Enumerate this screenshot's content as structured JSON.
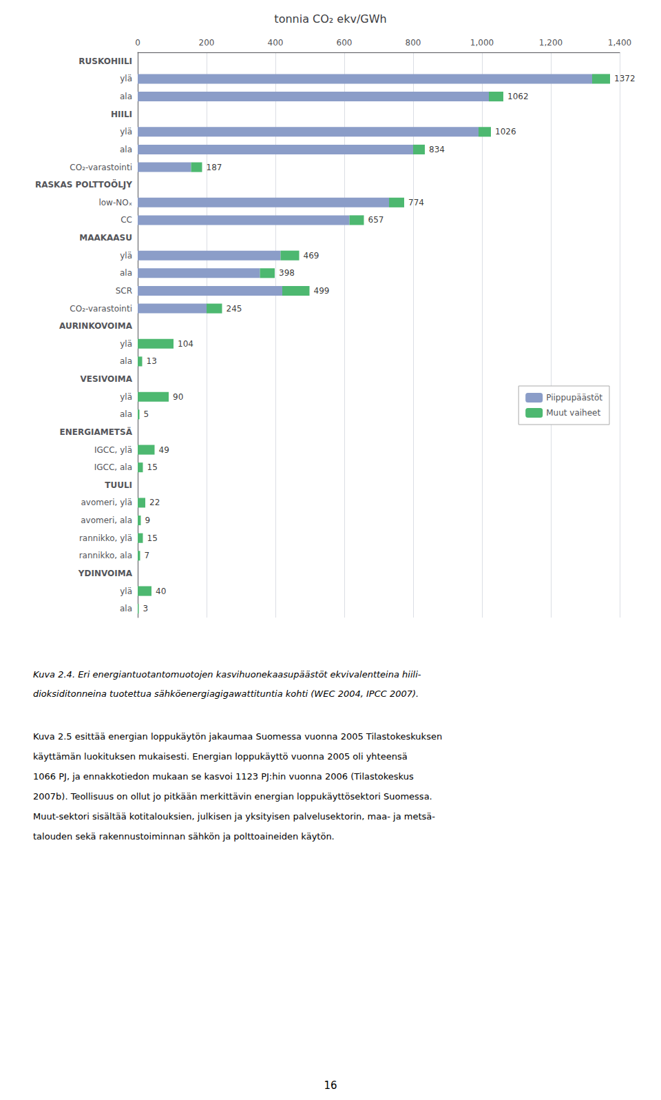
{
  "chart_data": {
    "type": "bar",
    "orientation": "horizontal",
    "stacked": true,
    "title": "tonnia CO₂ ekv/GWh⁥",
    "categories": [
      "RUSKOHIILI",
      "ylä",
      "ala",
      "HIILI",
      "ylä",
      "ala",
      "CO₂-varastointi",
      "RASKAS POLTTOÖLJY",
      "low-NOₓ",
      "CC",
      "MAAKAASU",
      "ylä",
      "ala",
      "SCR",
      "CO₂-varastointi",
      "AURINKOVOIMA",
      "ylä",
      "ala",
      "VESIVOIMA",
      "ylä",
      "ala",
      "ENERGIAMETSÄ",
      "IGCC, ylä",
      "IGCC, ala",
      "TUULI",
      "avomeri, ylä",
      "avomeri, ala",
      "rannikko, ylä",
      "rannikko, ala",
      "YDINVOIMA",
      "ylä",
      "ala"
    ],
    "series": [
      {
        "name": "Piippupäästöt",
        "color": "#8B9DC8",
        "values": [
          null,
          1320,
          1020,
          null,
          990,
          800,
          155,
          null,
          730,
          615,
          null,
          415,
          355,
          420,
          200,
          null,
          0,
          0,
          null,
          0,
          0,
          null,
          0,
          0,
          null,
          0,
          0,
          0,
          0,
          null,
          0,
          0
        ]
      },
      {
        "name": "Muut vaiheet",
        "color": "#4DB870",
        "values": [
          null,
          52,
          42,
          null,
          36,
          34,
          32,
          null,
          44,
          42,
          null,
          54,
          43,
          79,
          45,
          null,
          104,
          13,
          null,
          90,
          5,
          null,
          49,
          15,
          null,
          22,
          9,
          15,
          7,
          null,
          40,
          3
        ]
      }
    ],
    "totals": [
      null,
      1372,
      1062,
      null,
      1026,
      834,
      187,
      null,
      774,
      657,
      null,
      469,
      398,
      499,
      245,
      null,
      104,
      13,
      null,
      90,
      5,
      null,
      49,
      15,
      null,
      22,
      9,
      15,
      7,
      null,
      40,
      3
    ],
    "xlim": [
      0,
      1400
    ],
    "xticks": [
      0,
      200,
      400,
      600,
      800,
      1000,
      1200,
      1400
    ],
    "grid": true,
    "legend": "right",
    "caption": [
      "Kuva 2.4. Eri energiantuotantomuotojen kasvihuonekaasupäästöt ekvivalentteina hiili-",
      "dioksiditonneina tuotettua sähköenergiagigawattituntia kohti (WEC 2004, IPCC 2007)."
    ],
    "paragraph": [
      "Kuva 2.5 esittää energian loppukäytön jakaumaa Suomessa vuonna 2005 Tilastokeskuksen",
      "käyttämän luokituksen mukaisesti. Energian loppukäyttö vuonna 2005 oli yhteensä",
      "1066 PJ, ja ennakkotiedon mukaan se kasvoi 1123 PJ:hin vuonna 2006 (Tilastokeskus",
      "2007b). Teollisuus on ollut jo pitkään merkittävin energian loppukäyttösektori Suomessa.",
      "Muut-sektori sisältää kotitalouksien, julkisen ja yksityisen palvelusektorin, maa- ja metsä-",
      "talouden sekä rakennustoiminnan sähkön ja polttoaineiden käytön."
    ],
    "page_number": "16"
  }
}
